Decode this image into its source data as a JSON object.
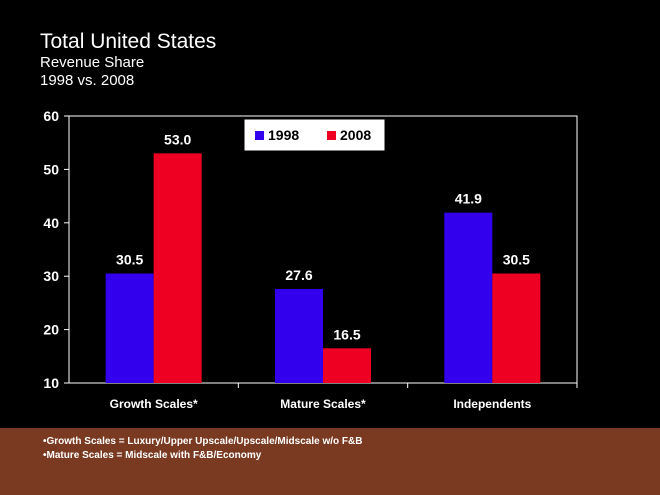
{
  "colors": {
    "background": "#000000",
    "footer": "#7a3a22",
    "series_1998": "#3300ee",
    "series_2008": "#ee0022",
    "plot_border": "#ffffff"
  },
  "chart_data": {
    "type": "bar",
    "title": "Total United States",
    "subtitle_lines": [
      "Revenue Share",
      "1998 vs. 2008"
    ],
    "categories": [
      "Growth Scales*",
      "Mature Scales*",
      "Independents"
    ],
    "series": [
      {
        "name": "1998",
        "values": [
          30.5,
          27.6,
          41.9
        ],
        "labels": [
          "30.5",
          "27.6",
          "41.9"
        ]
      },
      {
        "name": "2008",
        "values": [
          53.0,
          16.5,
          30.5
        ],
        "labels": [
          "53.0",
          "16.5",
          "30.5"
        ]
      }
    ],
    "ylim": [
      10,
      60
    ],
    "yticks": [
      "10",
      "20",
      "30",
      "40",
      "50",
      "60"
    ],
    "grid": false,
    "legend_position": "top-center"
  },
  "footnotes": [
    "•Growth Scales = Luxury/Upper Upscale/Upscale/Midscale w/o F&B",
    "•Mature Scales = Midscale with F&B/Economy"
  ]
}
